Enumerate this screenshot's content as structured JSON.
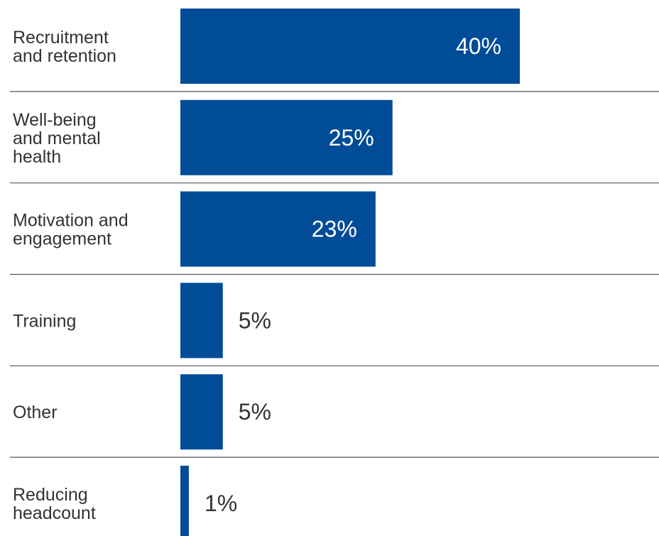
{
  "chart_data": {
    "type": "bar",
    "orientation": "horizontal",
    "categories": [
      [
        "Recruitment",
        "and retention"
      ],
      [
        "Well-being",
        "and mental",
        "health"
      ],
      [
        "Motivation and",
        "engagement"
      ],
      [
        "Training"
      ],
      [
        "Other"
      ],
      [
        "Reducing",
        "headcount"
      ]
    ],
    "values": [
      40,
      25,
      23,
      5,
      5,
      1
    ],
    "value_labels": [
      "40%",
      "25%",
      "23%",
      "5%",
      "5%",
      "1%"
    ],
    "unit": "%",
    "xlim": [
      0,
      40
    ],
    "grid": false,
    "legend": "none",
    "colors": {
      "bar": "#004C97",
      "label_inside": "#ffffff",
      "label_outside": "#333333",
      "category_text": "#333333",
      "separator": "#555555"
    }
  }
}
